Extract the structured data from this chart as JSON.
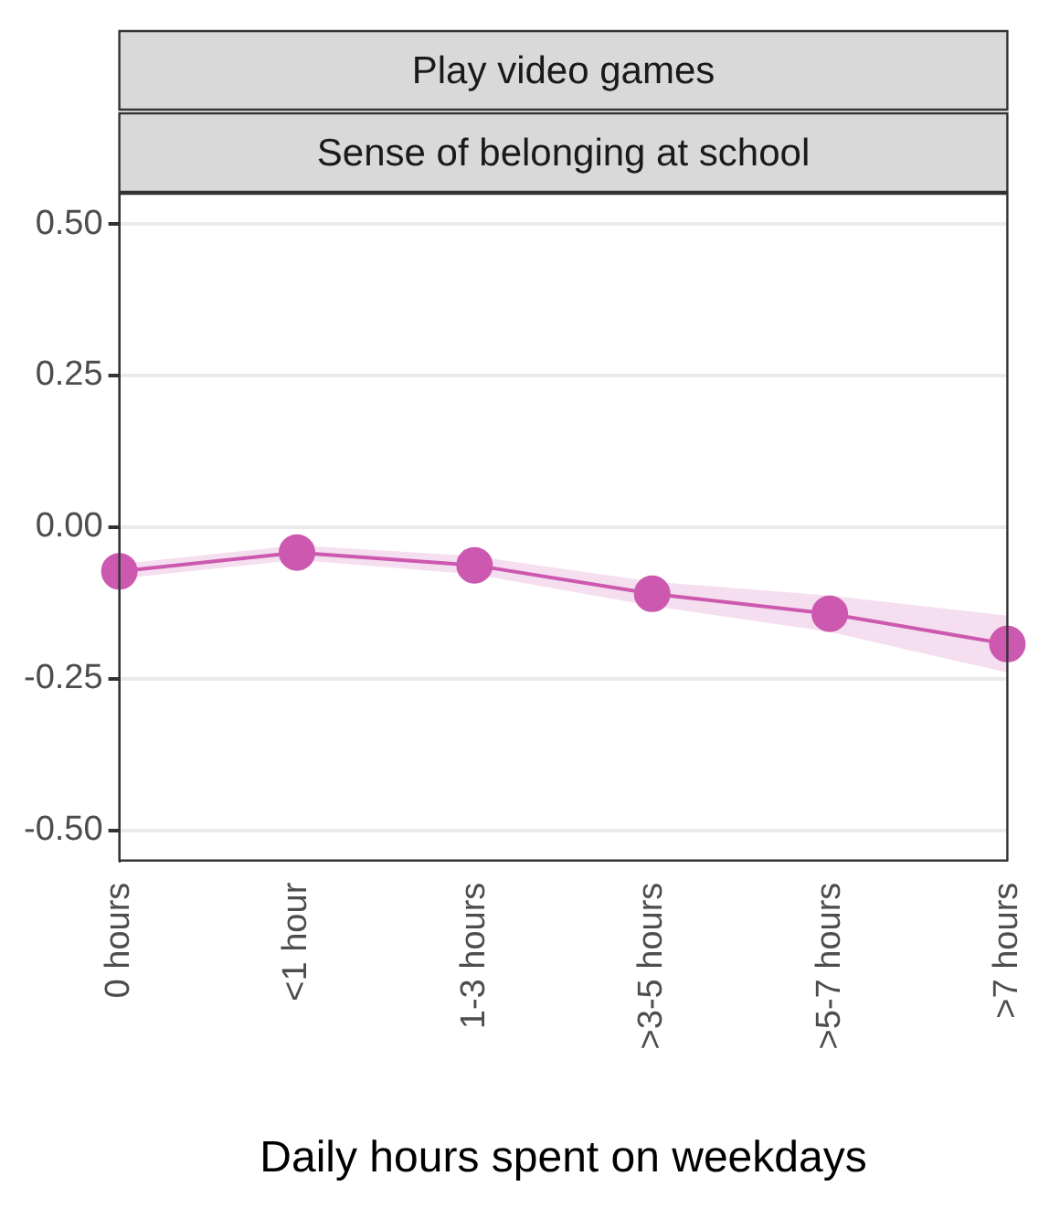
{
  "chart_data": {
    "type": "line",
    "title": "Play video games",
    "subtitle": "Sense of belonging at school",
    "xlabel": "Daily hours spent on weekdays",
    "categories": [
      "0 hours",
      "<1 hour",
      "1-3 hours",
      ">3-5 hours",
      ">5-7 hours",
      ">7 hours"
    ],
    "series": [
      {
        "color": "#cc59b0",
        "values": [
          -0.073,
          -0.042,
          -0.063,
          -0.11,
          -0.143,
          -0.193
        ],
        "lower": [
          -0.085,
          -0.054,
          -0.078,
          -0.13,
          -0.173,
          -0.24
        ],
        "upper": [
          -0.061,
          -0.03,
          -0.048,
          -0.09,
          -0.113,
          -0.146
        ]
      }
    ],
    "ylim": [
      -0.55,
      0.55
    ],
    "yticks": [
      {
        "value": -0.5,
        "label": "-0.50"
      },
      {
        "value": -0.25,
        "label": "-0.25"
      },
      {
        "value": 0,
        "label": "0.00"
      },
      {
        "value": 0.25,
        "label": "0.25"
      },
      {
        "value": 0.5,
        "label": "0.50"
      }
    ],
    "grid": "y",
    "marker": "circle",
    "legend": false
  }
}
